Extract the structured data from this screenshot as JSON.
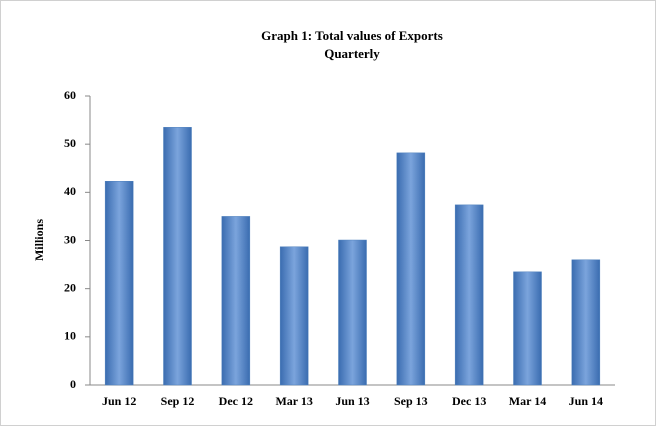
{
  "chart_data": {
    "type": "bar",
    "title": "Graph 1:  Total values of Exports",
    "subtitle": "Quarterly",
    "y_label": "Millions",
    "categories": [
      "Jun 12",
      "Sep 12",
      "Dec 12",
      "Mar 13",
      "Jun 13",
      "Sep 13",
      "Dec 13",
      "Mar 14",
      "Jun 14"
    ],
    "values": [
      42.3,
      53.5,
      35,
      28.7,
      30.1,
      48.2,
      37.4,
      23.5,
      26
    ],
    "color": "#4f81bd",
    "ylim": [
      0,
      60
    ],
    "yticks": [
      0,
      10,
      20,
      30,
      40,
      50,
      60
    ],
    "grid": false
  }
}
